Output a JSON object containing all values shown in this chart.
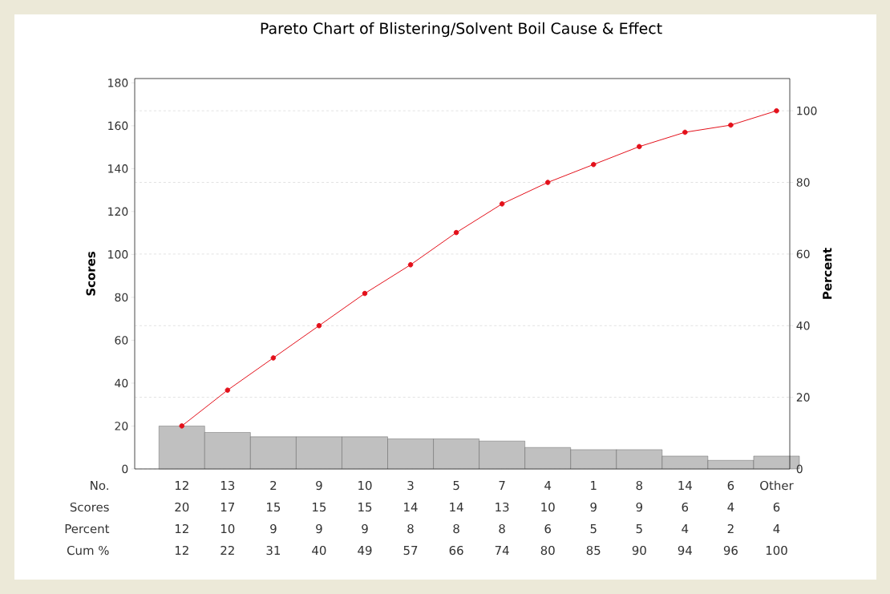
{
  "chart_data": {
    "type": "bar",
    "title": "Pareto Chart of Blistering/Solvent Boil Cause & Effect",
    "xlabel": "No.",
    "ylabel": "Scores",
    "y2label": "Percent",
    "categories": [
      "12",
      "13",
      "2",
      "9",
      "10",
      "3",
      "5",
      "7",
      "4",
      "1",
      "8",
      "14",
      "6",
      "Other"
    ],
    "series": [
      {
        "color": "#c0c0c0",
        "values": [
          20,
          17,
          15,
          15,
          15,
          14,
          14,
          13,
          10,
          9,
          9,
          6,
          4,
          6
        ]
      },
      {
        "type": "line",
        "axis": "y2",
        "color": "#e3101a",
        "values": [
          12,
          22,
          31,
          40,
          49,
          57,
          66,
          74,
          80,
          85,
          90,
          94,
          96,
          100
        ]
      }
    ],
    "annotations": [
      "Scores",
      "Percent",
      "Cum %",
      "12",
      "10",
      "9",
      "9",
      "9",
      "8",
      "8",
      "8",
      "6",
      "5",
      "5",
      "4",
      "2",
      "4"
    ],
    "ylim": [
      0,
      182
    ],
    "yticks": [
      0,
      20,
      40,
      60,
      80,
      100,
      120,
      140,
      160,
      180
    ],
    "y2lim": [
      0,
      109
    ],
    "y2ticks": [
      0,
      20,
      40,
      60,
      80,
      100
    ],
    "grid": "y2",
    "data_labels": true,
    "marker": "circle",
    "line_style": "solid"
  }
}
